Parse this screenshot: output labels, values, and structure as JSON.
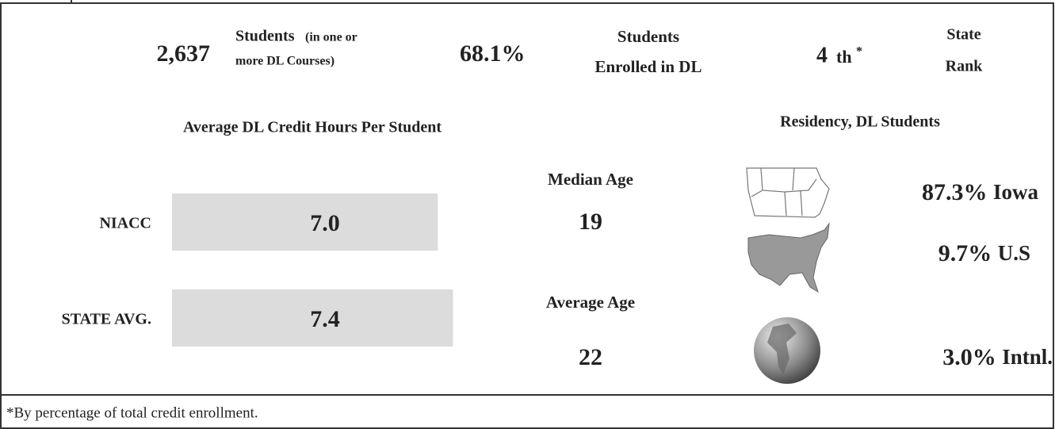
{
  "summary": {
    "students_count": "2,637",
    "students_label": "Students",
    "students_note": [
      "(in one or",
      "more DL Courses)"
    ],
    "enrolled_percent": "68.1%",
    "enrolled_label": [
      "Students",
      "Enrolled in DL"
    ],
    "rank": "4",
    "rank_suffix": "th",
    "rank_mark": "*",
    "rank_label": [
      "State",
      "Rank"
    ]
  },
  "credit_hours": {
    "title": "Average DL Credit Hours Per Student",
    "bars": [
      {
        "label": "NIACC",
        "value": 7,
        "value_label": "7.0"
      },
      {
        "label": "STATE AVG.",
        "value": 7.4,
        "value_label": "7.4"
      }
    ]
  },
  "ages": [
    {
      "label": "Median Age",
      "value": "19"
    },
    {
      "label": "Average Age",
      "value": "22"
    }
  ],
  "residency": {
    "title": "Residency, DL Students",
    "items": [
      {
        "percent": "87.3%",
        "place": "Iowa"
      },
      {
        "percent": "9.7%",
        "place": "U.S"
      },
      {
        "percent": "3.0%",
        "place": "Intnl."
      }
    ]
  },
  "footnote": "*By percentage of total credit enrollment."
}
